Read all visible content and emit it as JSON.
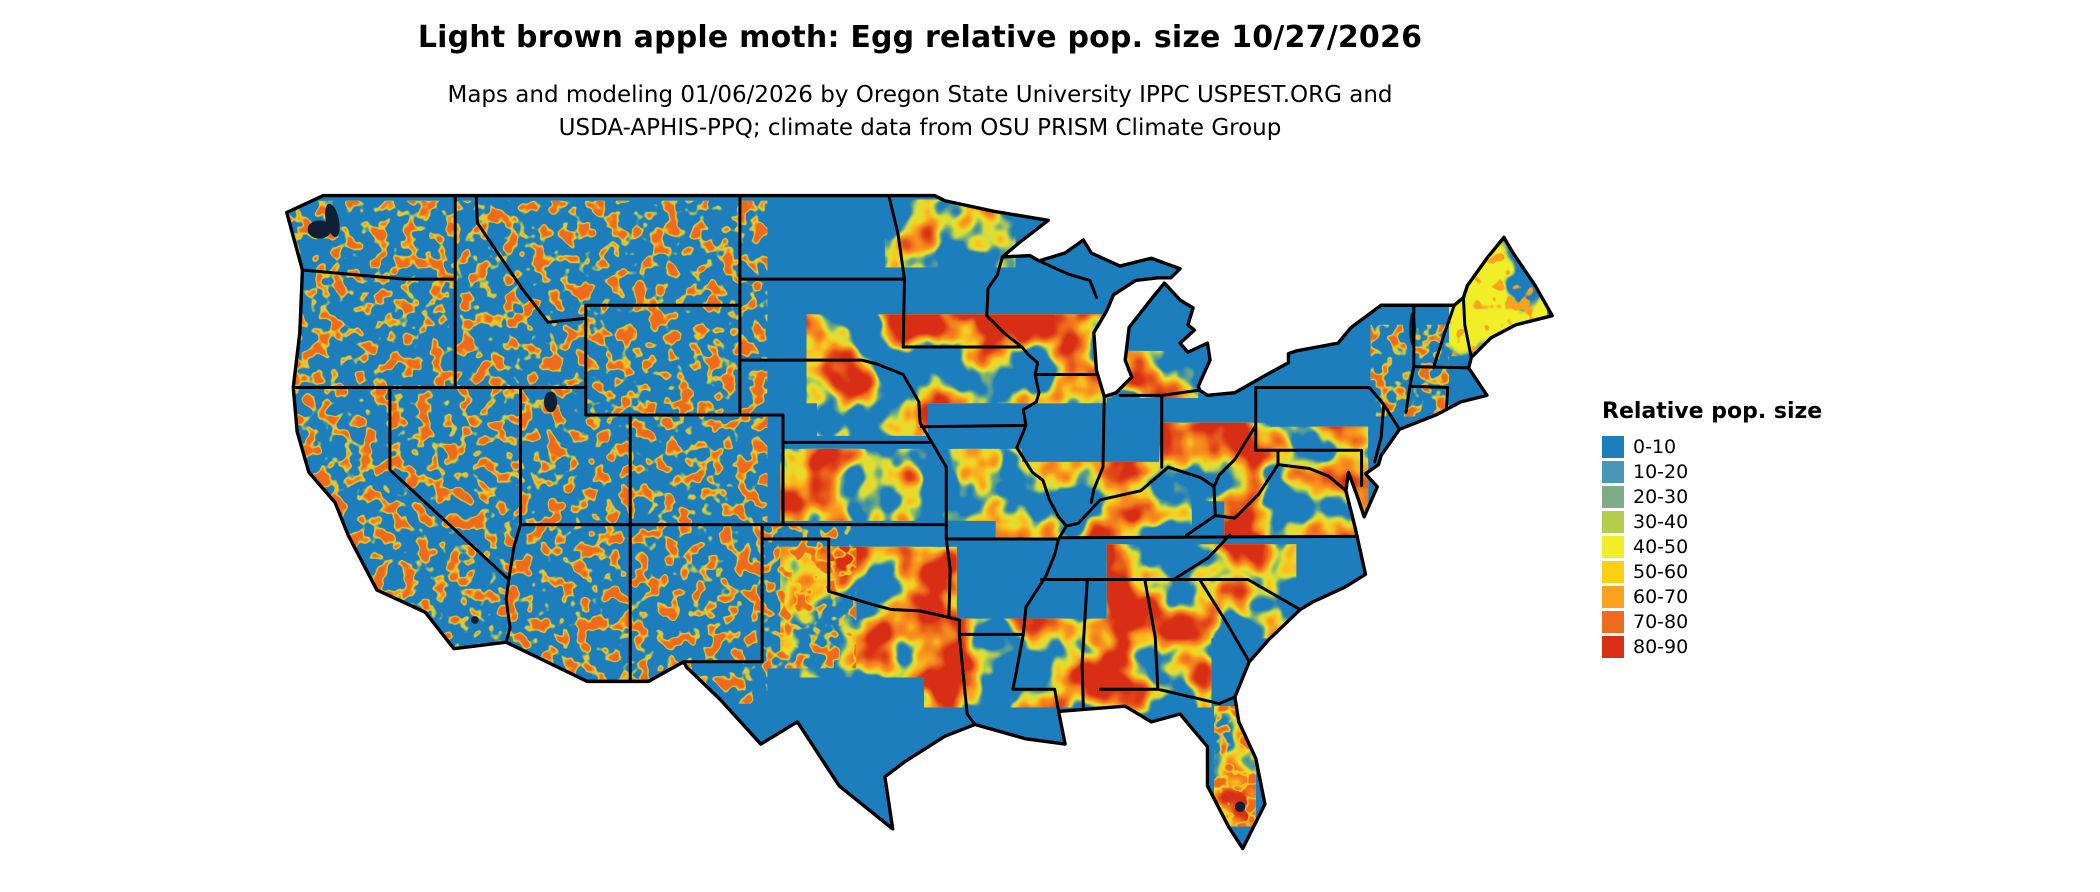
{
  "title": "Light brown apple moth: Egg relative pop. size 10/27/2026",
  "subtitle_line1": "Maps and modeling 01/06/2026 by Oregon State University IPPC USPEST.ORG and",
  "subtitle_line2": "USDA-APHIS-PPQ; climate data from OSU PRISM Climate Group",
  "legend": {
    "title": "Relative pop. size",
    "items": [
      {
        "label": "0-10",
        "color": "#1d7ebe"
      },
      {
        "label": "10-20",
        "color": "#4a96b5"
      },
      {
        "label": "20-30",
        "color": "#7ead85"
      },
      {
        "label": "30-40",
        "color": "#b5cd4d"
      },
      {
        "label": "40-50",
        "color": "#f0ee27"
      },
      {
        "label": "50-60",
        "color": "#fbcf12"
      },
      {
        "label": "60-70",
        "color": "#f9a21f"
      },
      {
        "label": "70-80",
        "color": "#ee6b1f"
      },
      {
        "label": "80-90",
        "color": "#d92f16"
      }
    ]
  },
  "map": {
    "region": "Contiguous United States",
    "border_color": "#000000",
    "water_color": "#102034"
  }
}
